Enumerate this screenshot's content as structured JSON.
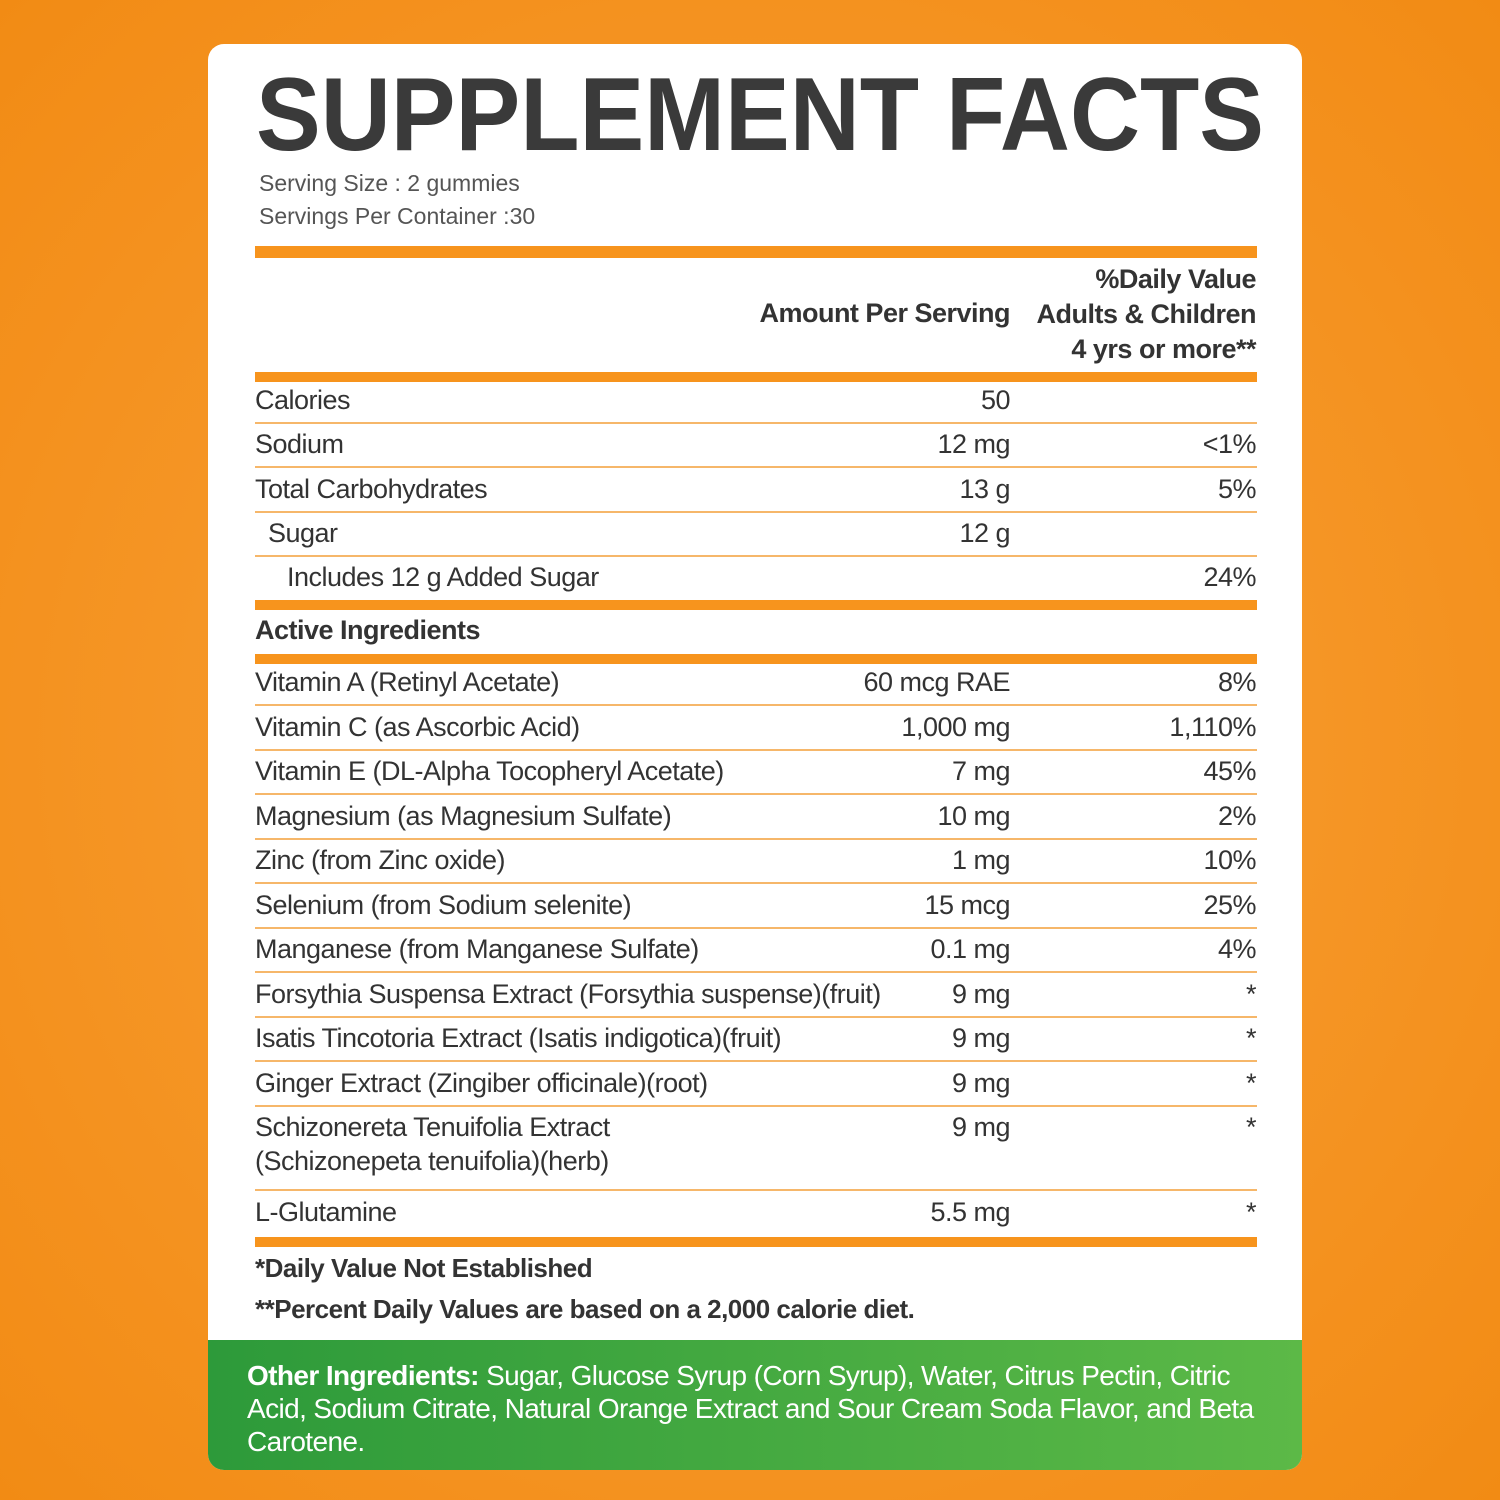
{
  "header": {
    "title": "SUPPLEMENT FACTS",
    "serving_size": "Serving Size : 2 gummies",
    "servings_per_container": "Servings Per Container :30"
  },
  "columns": {
    "amount": "Amount Per Serving",
    "daily_value": "%Daily Value\nAdults & Children\n4 yrs or more**"
  },
  "nutrition": [
    {
      "name": "Calories",
      "amount": "50"
    },
    {
      "name": "Sodium",
      "amount": "12 mg",
      "daily_value": "<1%"
    },
    {
      "name": "Total Carbohydrates",
      "amount": "13 g",
      "daily_value": "5%"
    },
    {
      "name": "Sugar",
      "amount": "12 g"
    },
    {
      "name": "Includes 12 g Added Sugar",
      "daily_value": "24%"
    }
  ],
  "active_heading": "Active Ingredients",
  "active": [
    {
      "name": "Vitamin A (Retinyl Acetate)",
      "amount": "60 mcg RAE",
      "daily_value": "8%"
    },
    {
      "name": "Vitamin C (as Ascorbic Acid)",
      "amount": "1,000 mg",
      "daily_value": "1,110%"
    },
    {
      "name": "Vitamin E (DL-Alpha Tocopheryl Acetate)",
      "amount": "7 mg",
      "daily_value": "45%"
    },
    {
      "name": "Magnesium (as Magnesium Sulfate)",
      "amount": "10 mg",
      "daily_value": "2%"
    },
    {
      "name": "Zinc (from Zinc oxide)",
      "amount": "1 mg",
      "daily_value": "10%"
    },
    {
      "name": "Selenium (from Sodium selenite)",
      "amount": "15 mcg",
      "daily_value": "25%"
    },
    {
      "name": "Manganese (from Manganese Sulfate)",
      "amount": "0.1 mg",
      "daily_value": "4%"
    },
    {
      "name": "Forsythia Suspensa Extract (Forsythia suspense)(fruit)",
      "amount": "9 mg",
      "daily_value": "*"
    },
    {
      "name": "Isatis Tincotoria Extract (Isatis indigotica)(fruit)",
      "amount": "9 mg",
      "daily_value": "*"
    },
    {
      "name": "Ginger Extract (Zingiber officinale)(root)",
      "amount": "9 mg",
      "daily_value": "*"
    },
    {
      "name": "Schizonereta Tenuifolia Extract\n(Schizonepeta tenuifolia)(herb)",
      "amount": "9 mg",
      "daily_value": "*"
    },
    {
      "name": "L-Glutamine",
      "amount": "5.5 mg",
      "daily_value": "*"
    }
  ],
  "footnotes": [
    "*Daily Value Not Established",
    "**Percent Daily Values are based on a 2,000 calorie diet."
  ],
  "other_ingredients": {
    "label": "Other Ingredients:",
    "text": "Sugar, Glucose Syrup (Corn Syrup), Water, Citrus Pectin, Citric Acid, Sodium Citrate, Natural Orange Extract and Sour Cream Soda Flavor, and Beta Carotene."
  }
}
